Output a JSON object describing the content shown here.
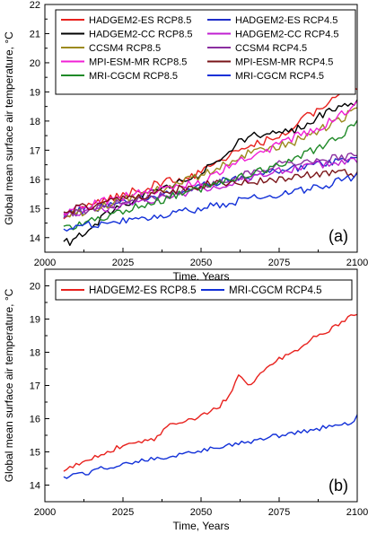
{
  "chart_data": [
    {
      "type": "line",
      "panel_label": "(a)",
      "xlabel": "Time, Years",
      "ylabel": "Global mean surface air temperature, °C",
      "xlim": [
        2000,
        2100
      ],
      "ylim": [
        13.5,
        22.0
      ],
      "xticks": [
        2000,
        2025,
        2050,
        2075,
        2100
      ],
      "yticks": [
        14,
        15,
        16,
        17,
        18,
        19,
        20,
        21,
        22
      ],
      "legend_location": "top-left",
      "series": [
        {
          "name": "HADGEM2-ES RCP8.5",
          "color": "#e8211d",
          "x": [
            2006,
            2020,
            2035,
            2050,
            2060,
            2075,
            2090,
            2100
          ],
          "y": [
            14.7,
            15.3,
            15.8,
            16.2,
            16.9,
            17.5,
            18.6,
            19.2
          ]
        },
        {
          "name": "HADGEM2-ES RCP4.5",
          "color": "#1f2ec9",
          "x": [
            2006,
            2025,
            2050,
            2075,
            2100
          ],
          "y": [
            14.8,
            15.2,
            15.8,
            16.3,
            16.7
          ]
        },
        {
          "name": "HADGEM2-CC RCP8.5",
          "color": "#000000",
          "x": [
            2006,
            2008,
            2020,
            2035,
            2050,
            2065,
            2080,
            2090,
            2100
          ],
          "y": [
            14.0,
            13.8,
            14.8,
            15.6,
            16.2,
            17.5,
            17.7,
            18.3,
            18.7
          ]
        },
        {
          "name": "HADGEM2-CC RCP4.5",
          "color": "#c01fd1",
          "x": [
            2006,
            2025,
            2050,
            2075,
            2100
          ],
          "y": [
            14.8,
            15.1,
            15.6,
            16.3,
            16.7
          ]
        },
        {
          "name": "CCSM4 RCP8.5",
          "color": "#9c8a1e",
          "x": [
            2006,
            2025,
            2050,
            2065,
            2080,
            2090,
            2100
          ],
          "y": [
            14.7,
            15.3,
            16.1,
            16.9,
            17.3,
            17.8,
            18.4
          ]
        },
        {
          "name": "CCSM4 RCP4.5",
          "color": "#8b2fa0",
          "x": [
            2006,
            2025,
            2050,
            2075,
            2100
          ],
          "y": [
            14.8,
            15.2,
            15.7,
            16.5,
            16.8
          ]
        },
        {
          "name": "MPI-ESM-MR RCP8.5",
          "color": "#f11fd6",
          "x": [
            2006,
            2025,
            2050,
            2060,
            2075,
            2090,
            2100
          ],
          "y": [
            14.9,
            15.4,
            15.9,
            16.5,
            17.2,
            17.9,
            18.6
          ]
        },
        {
          "name": "MPI-ESM-MR RCP4.5",
          "color": "#7a1418",
          "x": [
            2006,
            2025,
            2050,
            2075,
            2090,
            2100
          ],
          "y": [
            14.9,
            15.3,
            15.8,
            16.0,
            16.2,
            16.2
          ]
        },
        {
          "name": "MRI-CGCM RCP8.5",
          "color": "#1f8a28",
          "x": [
            2006,
            2025,
            2050,
            2075,
            2090,
            2100
          ],
          "y": [
            14.3,
            14.9,
            15.7,
            16.5,
            17.2,
            17.9
          ]
        },
        {
          "name": "MRI-CGCM RCP4.5",
          "color": "#1230d8",
          "x": [
            2006,
            2025,
            2050,
            2075,
            2090,
            2100
          ],
          "y": [
            14.3,
            14.6,
            15.0,
            15.5,
            15.8,
            16.1
          ]
        }
      ]
    },
    {
      "type": "line",
      "panel_label": "(b)",
      "xlabel": "Time, Years",
      "ylabel": "Global mean surface air temperature, °C",
      "xlim": [
        2000,
        2100
      ],
      "ylim": [
        13.5,
        20.5
      ],
      "xticks": [
        2000,
        2025,
        2050,
        2075,
        2100
      ],
      "yticks": [
        14,
        15,
        16,
        17,
        18,
        19,
        20
      ],
      "legend_location": "top-left",
      "series": [
        {
          "name": "HADGEM2-ES RCP8.5",
          "color": "#e8211d",
          "x": [
            2006,
            2010,
            2015,
            2020,
            2025,
            2030,
            2035,
            2040,
            2045,
            2050,
            2055,
            2060,
            2062,
            2065,
            2070,
            2075,
            2080,
            2085,
            2090,
            2095,
            2100
          ],
          "y": [
            14.4,
            14.6,
            14.8,
            15.0,
            15.2,
            15.3,
            15.4,
            15.8,
            15.9,
            16.1,
            16.3,
            16.8,
            17.3,
            17.0,
            17.4,
            17.8,
            18.0,
            18.4,
            18.6,
            18.9,
            19.2
          ]
        },
        {
          "name": "MRI-CGCM RCP4.5",
          "color": "#1230d8",
          "x": [
            2006,
            2010,
            2015,
            2020,
            2025,
            2030,
            2035,
            2040,
            2045,
            2050,
            2055,
            2060,
            2065,
            2070,
            2075,
            2080,
            2085,
            2090,
            2095,
            2099,
            2100
          ],
          "y": [
            14.25,
            14.3,
            14.4,
            14.55,
            14.6,
            14.7,
            14.8,
            14.85,
            14.95,
            15.05,
            15.15,
            15.2,
            15.3,
            15.4,
            15.5,
            15.55,
            15.65,
            15.75,
            15.85,
            15.9,
            16.1
          ]
        }
      ]
    }
  ]
}
